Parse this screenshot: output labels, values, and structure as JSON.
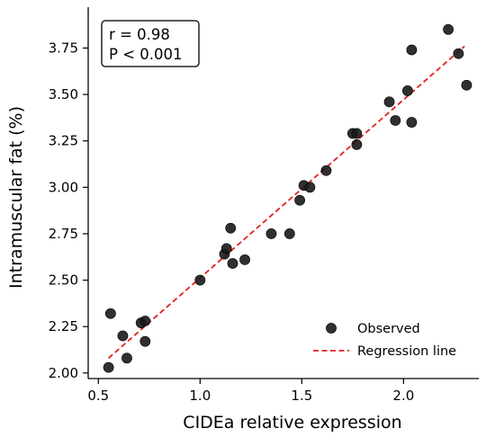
{
  "chart_data": {
    "type": "scatter",
    "xlabel": "CIDEa relative expression",
    "ylabel": "Intramuscular fat (%)",
    "xlim": [
      0.45,
      2.37
    ],
    "ylim": [
      1.97,
      3.97
    ],
    "x_ticks": [
      0.5,
      1.0,
      1.5,
      2.0
    ],
    "x_tick_labels": [
      "0.5",
      "1.0",
      "1.5",
      "2.0"
    ],
    "y_ticks": [
      2.0,
      2.25,
      2.5,
      2.75,
      3.0,
      3.25,
      3.5,
      3.75
    ],
    "y_tick_labels": [
      "2.00",
      "2.25",
      "2.50",
      "2.75",
      "3.00",
      "3.25",
      "3.50",
      "3.75"
    ],
    "grid": false,
    "annotation": {
      "lines": [
        "r = 0.98",
        "P < 0.001"
      ],
      "placement": "top-left"
    },
    "legend": {
      "placement": "bottom-right",
      "entries": [
        "Observed",
        "Regression line"
      ]
    },
    "series": [
      {
        "name": "Observed",
        "kind": "scatter",
        "color": "#1a1a1a",
        "points": [
          [
            0.55,
            2.03
          ],
          [
            0.56,
            2.32
          ],
          [
            0.62,
            2.2
          ],
          [
            0.64,
            2.08
          ],
          [
            0.71,
            2.27
          ],
          [
            0.73,
            2.28
          ],
          [
            0.73,
            2.17
          ],
          [
            1.0,
            2.5
          ],
          [
            1.12,
            2.64
          ],
          [
            1.13,
            2.67
          ],
          [
            1.15,
            2.78
          ],
          [
            1.16,
            2.59
          ],
          [
            1.22,
            2.61
          ],
          [
            1.35,
            2.75
          ],
          [
            1.44,
            2.75
          ],
          [
            1.49,
            2.93
          ],
          [
            1.51,
            3.01
          ],
          [
            1.54,
            3.0
          ],
          [
            1.62,
            3.09
          ],
          [
            1.75,
            3.29
          ],
          [
            1.77,
            3.29
          ],
          [
            1.77,
            3.23
          ],
          [
            1.93,
            3.46
          ],
          [
            1.96,
            3.36
          ],
          [
            2.02,
            3.52
          ],
          [
            2.04,
            3.35
          ],
          [
            2.04,
            3.74
          ],
          [
            2.22,
            3.85
          ],
          [
            2.27,
            3.72
          ],
          [
            2.31,
            3.55
          ]
        ]
      },
      {
        "name": "Regression line",
        "kind": "line",
        "style": "dashed",
        "color": "#e0211c",
        "points": [
          [
            0.55,
            2.08
          ],
          [
            2.3,
            3.76
          ]
        ]
      }
    ]
  }
}
